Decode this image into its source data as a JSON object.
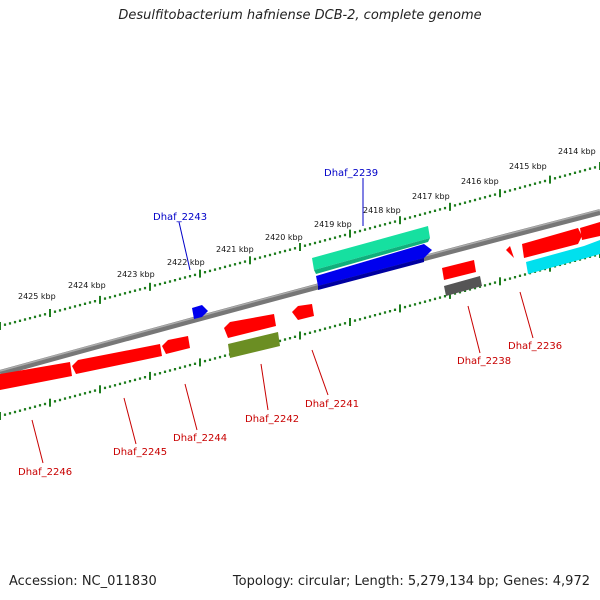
{
  "title": "Desulfitobacterium hafniense DCB-2, complete genome",
  "footer": {
    "accession": "Accession: NC_011830",
    "summary": "Topology: circular; Length: 5,279,134 bp; Genes: 4,972"
  },
  "kbp_ticks": [
    "2414 kbp",
    "2415 kbp",
    "2416 kbp",
    "2417 kbp",
    "2418 kbp",
    "2419 kbp",
    "2420 kbp",
    "2421 kbp",
    "2422 kbp",
    "2423 kbp",
    "2424 kbp",
    "2425 kbp"
  ],
  "genes_top": [
    {
      "name": "Dhaf_2239",
      "color": "#0000c8"
    },
    {
      "name": "Dhaf_2243",
      "color": "#0000c8"
    }
  ],
  "genes_bottom": [
    {
      "name": "Dhaf_2236",
      "color": "#c80000"
    },
    {
      "name": "Dhaf_2238",
      "color": "#c80000"
    },
    {
      "name": "Dhaf_2241",
      "color": "#c80000"
    },
    {
      "name": "Dhaf_2242",
      "color": "#c80000"
    },
    {
      "name": "Dhaf_2244",
      "color": "#c80000"
    },
    {
      "name": "Dhaf_2245",
      "color": "#c80000"
    },
    {
      "name": "Dhaf_2246",
      "color": "#c80000"
    }
  ],
  "colors": {
    "backbone": "#808080",
    "tick_line": "#1e7d1e",
    "gene_red": "#ff0000",
    "gene_blue": "#0000ff",
    "gene_green": "#19e6a6",
    "gene_olive": "#6b8e23",
    "gene_cyan": "#00e5ee",
    "gene_grey": "#555555"
  }
}
